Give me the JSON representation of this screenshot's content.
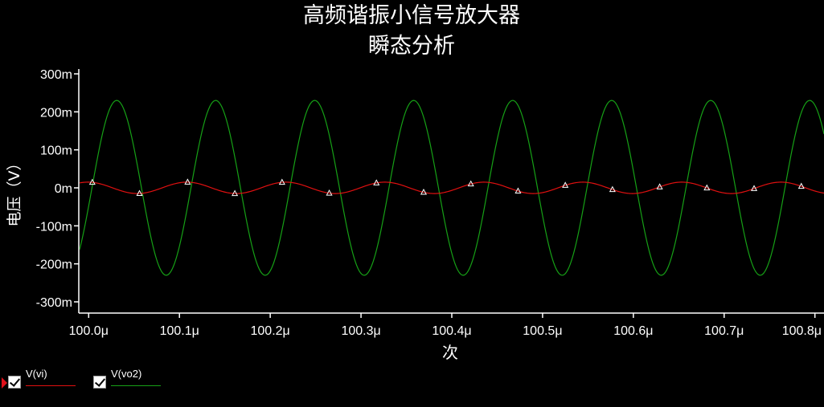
{
  "title": "高频谐振小信号放大器",
  "subtitle": "瞬态分析",
  "legend": {
    "items": [
      {
        "label": "V(vi)",
        "color": "#e01010",
        "checked": true
      },
      {
        "label": "V(vo2)",
        "color": "#16a016",
        "checked": true
      }
    ]
  },
  "chart_data": {
    "type": "line",
    "title": "高频谐振小信号放大器",
    "subtitle": "瞬态分析",
    "xlabel": "次",
    "ylabel": "电压（V）",
    "xlim": [
      99.99,
      100.81
    ],
    "ylim": [
      -0.3,
      0.3
    ],
    "x_unit": "μs",
    "y_unit": "V",
    "x_ticks": [
      100.0,
      100.1,
      100.2,
      100.3,
      100.4,
      100.5,
      100.6,
      100.7,
      100.8
    ],
    "x_tick_labels": [
      "100.0μ",
      "100.1μ",
      "100.2μ",
      "100.3μ",
      "100.4μ",
      "100.5μ",
      "100.6μ",
      "100.7μ",
      "100.8μ"
    ],
    "y_ticks": [
      0.3,
      0.2,
      0.1,
      0,
      -0.1,
      -0.2,
      -0.3
    ],
    "y_tick_labels": [
      "300m",
      "200m",
      "100m",
      "0m",
      "-100m",
      "-200m",
      "-300m"
    ],
    "grid": false,
    "legend_position": "bottom-left",
    "series": [
      {
        "name": "V(vi)",
        "color": "#e01010",
        "waveform": "sine",
        "amplitude": 0.015,
        "frequency_mhz": 9.17,
        "phase_deg": 60,
        "offset": 0,
        "marker_x": [
          100.004,
          100.056,
          100.109,
          100.161,
          100.213,
          100.265,
          100.317,
          100.369,
          100.421,
          100.473,
          100.525,
          100.577,
          100.629,
          100.681,
          100.733,
          100.785
        ],
        "marker_symbol": "triangle"
      },
      {
        "name": "V(vo2)",
        "color": "#16a016",
        "waveform": "sine",
        "amplitude": 0.23,
        "frequency_mhz": 9.17,
        "phase_deg": -45,
        "offset": 0
      }
    ]
  }
}
